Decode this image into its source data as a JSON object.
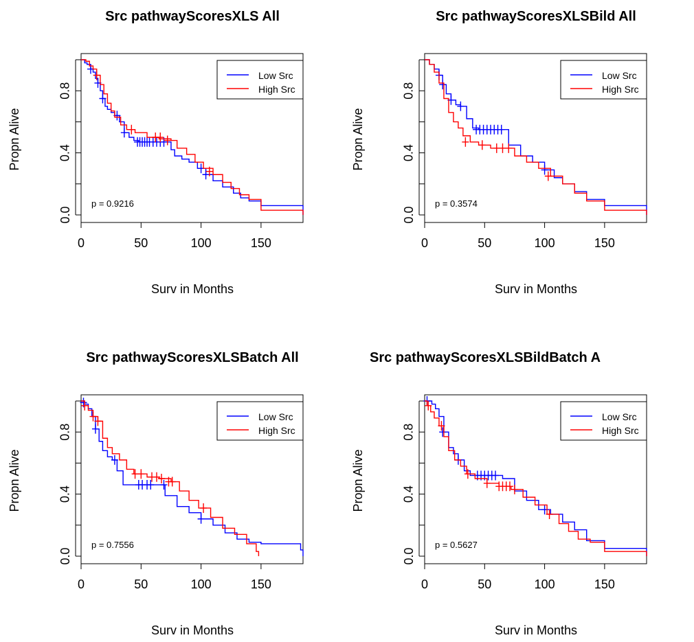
{
  "figure": {
    "background": "#ffffff"
  },
  "chart_data": [
    {
      "type": "line",
      "subtype": "kaplan-meier",
      "title": "Src pathwayScoresXLS All",
      "xlabel": "Surv in Months",
      "ylabel": "Propn Alive",
      "xlim": [
        0,
        185
      ],
      "ylim": [
        0,
        1
      ],
      "xticks": [
        "0",
        "50",
        "100",
        "150"
      ],
      "yticks": [
        "0.0",
        "0.4",
        "0.8"
      ],
      "legend": {
        "position": "top-right",
        "entries": [
          "Low Src",
          "High Src"
        ]
      },
      "annotation": "p = 0.9216",
      "series": [
        {
          "name": "Low Src",
          "color": "#0000ff",
          "x": [
            0,
            3,
            5,
            8,
            10,
            12,
            14,
            16,
            18,
            20,
            22,
            25,
            28,
            32,
            36,
            40,
            44,
            48,
            55,
            63,
            70,
            75,
            78,
            84,
            90,
            97,
            104,
            110,
            118,
            127,
            133,
            140,
            150,
            160,
            170,
            185
          ],
          "y": [
            1.0,
            0.98,
            0.97,
            0.94,
            0.92,
            0.88,
            0.85,
            0.8,
            0.75,
            0.7,
            0.68,
            0.66,
            0.64,
            0.6,
            0.53,
            0.5,
            0.48,
            0.47,
            0.47,
            0.47,
            0.47,
            0.42,
            0.38,
            0.36,
            0.34,
            0.3,
            0.26,
            0.22,
            0.18,
            0.14,
            0.11,
            0.09,
            0.06,
            0.06,
            0.06,
            0.0
          ],
          "censored": [
            [
              8,
              0.94
            ],
            [
              14,
              0.85
            ],
            [
              18,
              0.75
            ],
            [
              30,
              0.64
            ],
            [
              36,
              0.53
            ],
            [
              47,
              0.47
            ],
            [
              49,
              0.47
            ],
            [
              51,
              0.47
            ],
            [
              53,
              0.47
            ],
            [
              55,
              0.47
            ],
            [
              57,
              0.47
            ],
            [
              60,
              0.47
            ],
            [
              63,
              0.47
            ],
            [
              66,
              0.47
            ],
            [
              69,
              0.47
            ],
            [
              100,
              0.3
            ],
            [
              104,
              0.26
            ]
          ]
        },
        {
          "name": "High Src",
          "color": "#ff0000",
          "x": [
            0,
            4,
            7,
            10,
            13,
            16,
            19,
            22,
            25,
            28,
            33,
            38,
            45,
            55,
            65,
            75,
            80,
            88,
            95,
            102,
            110,
            118,
            125,
            132,
            140,
            150,
            170,
            185
          ],
          "y": [
            1.0,
            0.99,
            0.96,
            0.94,
            0.9,
            0.84,
            0.78,
            0.72,
            0.67,
            0.63,
            0.58,
            0.55,
            0.53,
            0.5,
            0.49,
            0.48,
            0.43,
            0.39,
            0.34,
            0.3,
            0.26,
            0.21,
            0.17,
            0.13,
            0.1,
            0.03,
            0.03,
            0.0
          ],
          "censored": [
            [
              13,
              0.9
            ],
            [
              42,
              0.55
            ],
            [
              62,
              0.5
            ],
            [
              66,
              0.5
            ],
            [
              72,
              0.48
            ],
            [
              107,
              0.28
            ]
          ]
        }
      ]
    },
    {
      "type": "line",
      "subtype": "kaplan-meier",
      "title": "Src pathwayScoresXLSBild All",
      "xlabel": "Surv in Months",
      "ylabel": "Propn Alive",
      "xlim": [
        0,
        185
      ],
      "ylim": [
        0,
        1
      ],
      "xticks": [
        "0",
        "50",
        "100",
        "150"
      ],
      "yticks": [
        "0.0",
        "0.4",
        "0.8"
      ],
      "legend": {
        "position": "top-right",
        "entries": [
          "Low Src",
          "High Src"
        ]
      },
      "annotation": "p = 0.3574",
      "series": [
        {
          "name": "Low Src",
          "color": "#0000ff",
          "x": [
            0,
            4,
            8,
            12,
            15,
            18,
            22,
            26,
            30,
            35,
            40,
            45,
            55,
            65,
            70,
            80,
            90,
            100,
            108,
            115,
            125,
            135,
            150,
            185
          ],
          "y": [
            1.0,
            0.97,
            0.94,
            0.9,
            0.84,
            0.78,
            0.74,
            0.71,
            0.7,
            0.62,
            0.56,
            0.55,
            0.55,
            0.55,
            0.45,
            0.38,
            0.34,
            0.29,
            0.24,
            0.2,
            0.15,
            0.1,
            0.06,
            0.0
          ],
          "censored": [
            [
              12,
              0.9
            ],
            [
              15,
              0.84
            ],
            [
              22,
              0.74
            ],
            [
              30,
              0.7
            ],
            [
              43,
              0.55
            ],
            [
              46,
              0.55
            ],
            [
              49,
              0.55
            ],
            [
              52,
              0.55
            ],
            [
              55,
              0.55
            ],
            [
              58,
              0.55
            ],
            [
              61,
              0.55
            ],
            [
              64,
              0.55
            ],
            [
              100,
              0.29
            ]
          ]
        },
        {
          "name": "High Src",
          "color": "#ff0000",
          "x": [
            0,
            4,
            8,
            12,
            16,
            20,
            24,
            28,
            32,
            38,
            45,
            55,
            65,
            75,
            85,
            95,
            105,
            115,
            125,
            135,
            150,
            185
          ],
          "y": [
            1.0,
            0.97,
            0.92,
            0.85,
            0.75,
            0.66,
            0.6,
            0.56,
            0.51,
            0.47,
            0.45,
            0.43,
            0.43,
            0.38,
            0.34,
            0.3,
            0.25,
            0.2,
            0.14,
            0.09,
            0.03,
            0.0
          ],
          "censored": [
            [
              34,
              0.47
            ],
            [
              48,
              0.45
            ],
            [
              60,
              0.43
            ],
            [
              65,
              0.43
            ],
            [
              70,
              0.43
            ],
            [
              103,
              0.25
            ]
          ]
        }
      ]
    },
    {
      "type": "line",
      "subtype": "kaplan-meier",
      "title": "Src pathwayScoresXLSBatch All",
      "xlabel": "Surv in Months",
      "ylabel": "Propn Alive",
      "xlim": [
        0,
        185
      ],
      "ylim": [
        0,
        1
      ],
      "xticks": [
        "0",
        "50",
        "100",
        "150"
      ],
      "yticks": [
        "0.0",
        "0.4",
        "0.8"
      ],
      "legend": {
        "position": "top-right",
        "entries": [
          "Low Src",
          "High Src"
        ]
      },
      "annotation": "p = 0.7556",
      "series": [
        {
          "name": "Low Src",
          "color": "#0000ff",
          "x": [
            0,
            3,
            6,
            9,
            12,
            15,
            18,
            22,
            26,
            30,
            35,
            60,
            70,
            80,
            90,
            100,
            110,
            120,
            130,
            140,
            150,
            183,
            185
          ],
          "y": [
            1.0,
            0.98,
            0.95,
            0.9,
            0.82,
            0.74,
            0.68,
            0.64,
            0.62,
            0.55,
            0.46,
            0.46,
            0.39,
            0.32,
            0.28,
            0.24,
            0.2,
            0.15,
            0.11,
            0.09,
            0.08,
            0.04,
            0.0
          ],
          "censored": [
            [
              2,
              0.99
            ],
            [
              12,
              0.82
            ],
            [
              28,
              0.62
            ],
            [
              48,
              0.46
            ],
            [
              51,
              0.46
            ],
            [
              55,
              0.46
            ],
            [
              58,
              0.46
            ],
            [
              69,
              0.46
            ],
            [
              100,
              0.24
            ]
          ]
        },
        {
          "name": "High Src",
          "color": "#ff0000",
          "x": [
            0,
            3,
            6,
            10,
            14,
            18,
            22,
            26,
            32,
            38,
            44,
            55,
            65,
            75,
            82,
            90,
            98,
            108,
            118,
            128,
            138,
            146,
            148
          ],
          "y": [
            1.0,
            0.97,
            0.94,
            0.9,
            0.87,
            0.76,
            0.7,
            0.66,
            0.62,
            0.56,
            0.53,
            0.51,
            0.5,
            0.48,
            0.42,
            0.36,
            0.31,
            0.25,
            0.18,
            0.14,
            0.08,
            0.03,
            0.0
          ],
          "censored": [
            [
              3,
              0.97
            ],
            [
              10,
              0.9
            ],
            [
              14,
              0.87
            ],
            [
              45,
              0.53
            ],
            [
              50,
              0.53
            ],
            [
              59,
              0.51
            ],
            [
              63,
              0.51
            ],
            [
              67,
              0.5
            ],
            [
              73,
              0.48
            ],
            [
              76,
              0.48
            ],
            [
              102,
              0.31
            ]
          ]
        }
      ]
    },
    {
      "type": "line",
      "subtype": "kaplan-meier",
      "title": "Src pathwayScoresXLSBildBatch A",
      "xlabel": "Surv in Months",
      "ylabel": "Propn Alive",
      "xlim": [
        0,
        185
      ],
      "ylim": [
        0,
        1
      ],
      "xticks": [
        "0",
        "50",
        "100",
        "150"
      ],
      "yticks": [
        "0.0",
        "0.4",
        "0.8"
      ],
      "legend": {
        "position": "top-right",
        "entries": [
          "Low Src",
          "High Src"
        ]
      },
      "annotation": "p = 0.5627",
      "series": [
        {
          "name": "Low Src",
          "color": "#0000ff",
          "x": [
            0,
            3,
            6,
            9,
            12,
            16,
            20,
            24,
            28,
            33,
            38,
            45,
            55,
            65,
            75,
            85,
            95,
            105,
            115,
            125,
            135,
            150,
            185
          ],
          "y": [
            1.0,
            1.0,
            0.98,
            0.95,
            0.9,
            0.8,
            0.7,
            0.66,
            0.62,
            0.55,
            0.52,
            0.52,
            0.52,
            0.5,
            0.42,
            0.36,
            0.3,
            0.27,
            0.22,
            0.17,
            0.1,
            0.05,
            0.0
          ],
          "censored": [
            [
              2,
              1.0
            ],
            [
              15,
              0.8
            ],
            [
              28,
              0.62
            ],
            [
              44,
              0.52
            ],
            [
              47,
              0.52
            ],
            [
              50,
              0.52
            ],
            [
              53,
              0.52
            ],
            [
              56,
              0.52
            ],
            [
              59,
              0.52
            ],
            [
              100,
              0.3
            ]
          ]
        },
        {
          "name": "High Src",
          "color": "#ff0000",
          "x": [
            0,
            2,
            5,
            8,
            12,
            16,
            20,
            25,
            30,
            35,
            42,
            52,
            62,
            72,
            82,
            92,
            102,
            112,
            120,
            128,
            138,
            150,
            185
          ],
          "y": [
            1.0,
            0.97,
            0.93,
            0.89,
            0.84,
            0.77,
            0.68,
            0.62,
            0.58,
            0.53,
            0.5,
            0.47,
            0.45,
            0.43,
            0.38,
            0.33,
            0.27,
            0.21,
            0.16,
            0.11,
            0.09,
            0.03,
            0.0
          ],
          "censored": [
            [
              3,
              0.97
            ],
            [
              14,
              0.84
            ],
            [
              36,
              0.53
            ],
            [
              52,
              0.47
            ],
            [
              62,
              0.45
            ],
            [
              65,
              0.45
            ],
            [
              68,
              0.45
            ],
            [
              71,
              0.45
            ],
            [
              75,
              0.43
            ],
            [
              104,
              0.27
            ]
          ]
        }
      ]
    }
  ]
}
